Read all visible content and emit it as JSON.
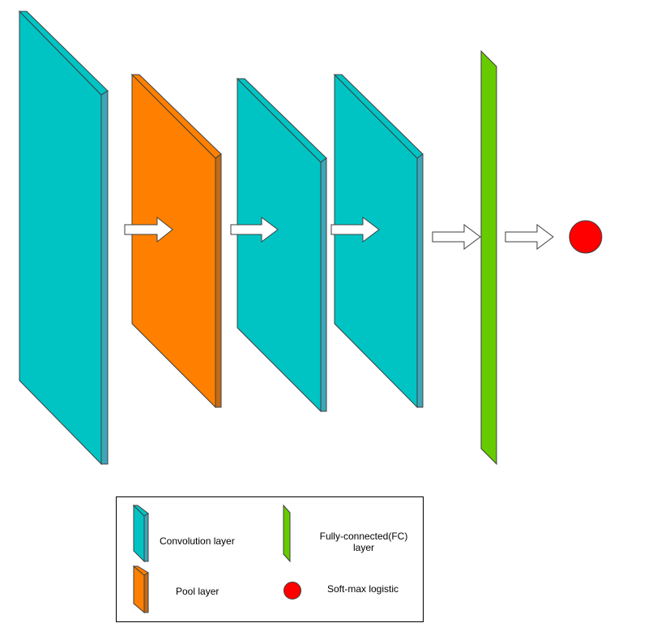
{
  "colors": {
    "convolution": "#00C4C4",
    "convolution_dark": "#3CA7B9",
    "pool": "#FF8000",
    "pool_dark": "#C46A14",
    "fully_connected": "#66CC00",
    "softmax": "#FF0000",
    "outline": "#3F3F3F",
    "arrow_fill": "#FFFFFF"
  },
  "diagram": {
    "layers": [
      {
        "kind": "convolution"
      },
      {
        "kind": "pool"
      },
      {
        "kind": "convolution"
      },
      {
        "kind": "convolution"
      },
      {
        "kind": "fully_connected"
      },
      {
        "kind": "softmax"
      }
    ]
  },
  "legend": {
    "items": [
      {
        "key": "convolution",
        "label": "Convolution layer",
        "icon": "convolution-layer-icon"
      },
      {
        "key": "pool",
        "label": "Pool layer",
        "icon": "pool-layer-icon"
      },
      {
        "key": "fully_connected",
        "label_line1": "Fully-connected(FC)",
        "label_line2": "layer",
        "icon": "fc-layer-icon"
      },
      {
        "key": "softmax",
        "label": "Soft-max logistic",
        "icon": "softmax-circle-icon"
      }
    ]
  }
}
